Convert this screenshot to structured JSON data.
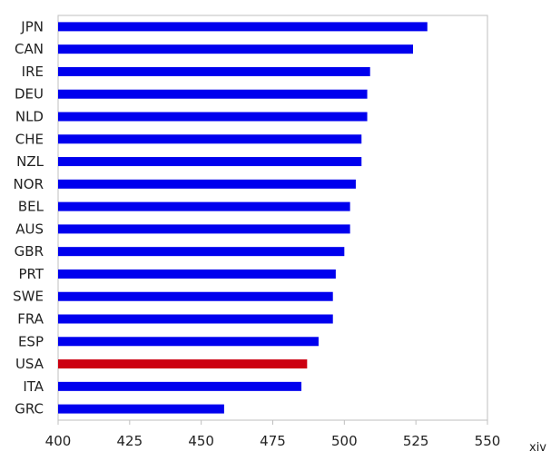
{
  "chart_data": {
    "type": "bar",
    "orientation": "horizontal",
    "categories": [
      "JPN",
      "CAN",
      "IRE",
      "DEU",
      "NLD",
      "CHE",
      "NZL",
      "NOR",
      "BEL",
      "AUS",
      "GBR",
      "PRT",
      "SWE",
      "FRA",
      "ESP",
      "USA",
      "ITA",
      "GRC"
    ],
    "values": [
      529,
      524,
      509,
      508,
      508,
      506,
      506,
      504,
      502,
      502,
      500,
      497,
      496,
      496,
      491,
      487,
      485,
      458
    ],
    "highlight": "USA",
    "xlim": [
      400,
      550
    ],
    "xticks": [
      400,
      425,
      450,
      475,
      500,
      525,
      550
    ],
    "grid": false,
    "colors": {
      "bar": "#0000ee",
      "highlight": "#cc0011",
      "axis": "#bfbfbf"
    }
  },
  "footer": {
    "page_number": "xiv"
  }
}
